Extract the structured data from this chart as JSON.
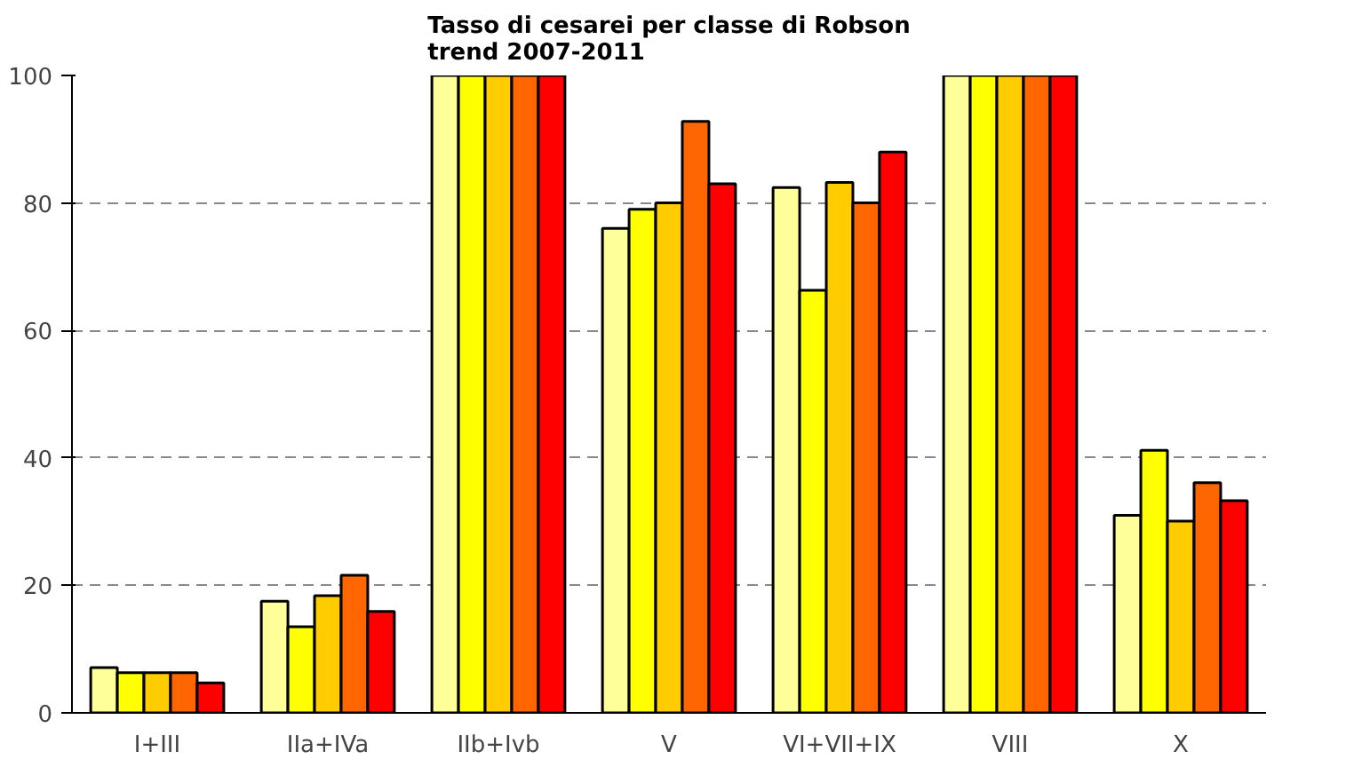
{
  "chart_data": {
    "type": "bar",
    "title": "Tasso di cesarei per classe di Robson\ntrend 2007-2011",
    "categories": [
      "I+III",
      "IIa+IVa",
      "IIb+Ivb",
      "V",
      "VI+VII+IX",
      "VIII",
      "X"
    ],
    "series": [
      {
        "color": "#ffff99",
        "values": [
          7.1,
          17.5,
          100,
          76,
          82.4,
          100,
          31
        ]
      },
      {
        "color": "#ffff00",
        "values": [
          6.3,
          13.5,
          100,
          79,
          66.3,
          100,
          41.2
        ]
      },
      {
        "color": "#ffcc00",
        "values": [
          6.3,
          18.4,
          100,
          80,
          83.2,
          100,
          30.1
        ]
      },
      {
        "color": "#ff6600",
        "values": [
          6.3,
          21.6,
          100,
          92.8,
          80,
          100,
          36.1
        ]
      },
      {
        "color": "#ff0000",
        "values": [
          4.7,
          15.9,
          100,
          83,
          88,
          100,
          33.3
        ]
      }
    ],
    "ylim": [
      0,
      100
    ],
    "yticks": [
      0,
      20,
      40,
      60,
      80,
      100
    ],
    "grid": "y"
  }
}
